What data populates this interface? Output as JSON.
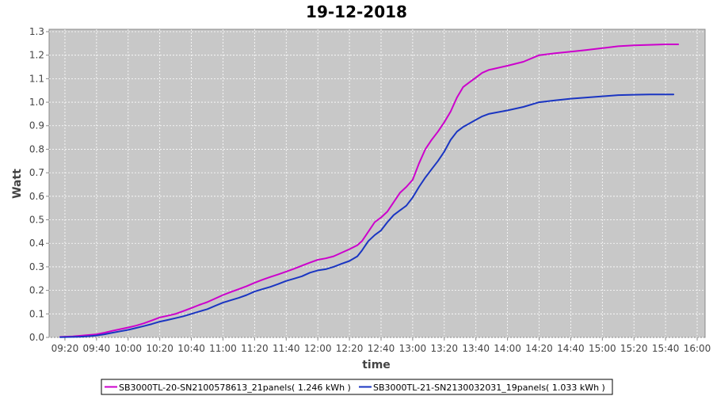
{
  "chart_data": {
    "type": "line",
    "title": "19-12-2018",
    "xlabel": "time",
    "ylabel": "Watt",
    "x_ticks": [
      "09:20",
      "09:40",
      "10:00",
      "10:20",
      "10:40",
      "11:00",
      "11:20",
      "11:40",
      "12:00",
      "12:20",
      "12:40",
      "13:00",
      "13:20",
      "13:40",
      "14:00",
      "14:20",
      "14:40",
      "15:00",
      "15:20",
      "15:40",
      "16:00"
    ],
    "y_ticks": [
      "0.0",
      "0.1",
      "0.2",
      "0.3",
      "0.4",
      "0.5",
      "0.6",
      "0.7",
      "0.8",
      "0.9",
      "1.0",
      "1.1",
      "1.2",
      "1.3"
    ],
    "xlim": [
      "09:10",
      "16:05"
    ],
    "ylim": [
      0,
      1.31
    ],
    "grid": true,
    "legend_position": "bottom",
    "series": [
      {
        "name": "SB3000TL-20-SN2100578613_21panels( 1.246 kWh )",
        "color": "#cc00cc",
        "points": [
          [
            "09:17",
            0.002
          ],
          [
            "09:25",
            0.004
          ],
          [
            "09:30",
            0.007
          ],
          [
            "09:35",
            0.01
          ],
          [
            "09:40",
            0.013
          ],
          [
            "09:45",
            0.02
          ],
          [
            "09:50",
            0.028
          ],
          [
            "09:55",
            0.035
          ],
          [
            "10:00",
            0.042
          ],
          [
            "10:05",
            0.05
          ],
          [
            "10:10",
            0.06
          ],
          [
            "10:15",
            0.072
          ],
          [
            "10:20",
            0.085
          ],
          [
            "10:25",
            0.092
          ],
          [
            "10:30",
            0.1
          ],
          [
            "10:35",
            0.112
          ],
          [
            "10:40",
            0.125
          ],
          [
            "10:45",
            0.138
          ],
          [
            "10:50",
            0.15
          ],
          [
            "10:55",
            0.165
          ],
          [
            "11:00",
            0.18
          ],
          [
            "11:05",
            0.193
          ],
          [
            "11:10",
            0.205
          ],
          [
            "11:15",
            0.218
          ],
          [
            "11:20",
            0.232
          ],
          [
            "11:25",
            0.245
          ],
          [
            "11:30",
            0.257
          ],
          [
            "11:35",
            0.268
          ],
          [
            "11:40",
            0.28
          ],
          [
            "11:45",
            0.292
          ],
          [
            "11:50",
            0.305
          ],
          [
            "11:55",
            0.318
          ],
          [
            "12:00",
            0.33
          ],
          [
            "12:05",
            0.336
          ],
          [
            "12:10",
            0.345
          ],
          [
            "12:15",
            0.36
          ],
          [
            "12:20",
            0.375
          ],
          [
            "12:25",
            0.392
          ],
          [
            "12:28",
            0.41
          ],
          [
            "12:32",
            0.45
          ],
          [
            "12:36",
            0.49
          ],
          [
            "12:40",
            0.51
          ],
          [
            "12:44",
            0.535
          ],
          [
            "12:48",
            0.575
          ],
          [
            "12:52",
            0.615
          ],
          [
            "12:56",
            0.64
          ],
          [
            "13:00",
            0.67
          ],
          [
            "13:04",
            0.74
          ],
          [
            "13:08",
            0.8
          ],
          [
            "13:12",
            0.84
          ],
          [
            "13:16",
            0.875
          ],
          [
            "13:20",
            0.915
          ],
          [
            "13:24",
            0.96
          ],
          [
            "13:28",
            1.02
          ],
          [
            "13:32",
            1.065
          ],
          [
            "13:36",
            1.085
          ],
          [
            "13:40",
            1.105
          ],
          [
            "13:44",
            1.125
          ],
          [
            "13:48",
            1.137
          ],
          [
            "13:52",
            1.143
          ],
          [
            "14:00",
            1.155
          ],
          [
            "14:10",
            1.172
          ],
          [
            "14:20",
            1.2
          ],
          [
            "14:30",
            1.208
          ],
          [
            "14:40",
            1.215
          ],
          [
            "14:50",
            1.222
          ],
          [
            "15:00",
            1.23
          ],
          [
            "15:10",
            1.238
          ],
          [
            "15:20",
            1.242
          ],
          [
            "15:30",
            1.244
          ],
          [
            "15:40",
            1.246
          ],
          [
            "15:48",
            1.246
          ]
        ]
      },
      {
        "name": "SB3000TL-21-SN2130032031_19panels( 1.033 kWh )",
        "color": "#1a35c2",
        "points": [
          [
            "09:17",
            0.001
          ],
          [
            "09:25",
            0.002
          ],
          [
            "09:30",
            0.003
          ],
          [
            "09:35",
            0.005
          ],
          [
            "09:40",
            0.008
          ],
          [
            "09:45",
            0.013
          ],
          [
            "09:50",
            0.02
          ],
          [
            "09:55",
            0.026
          ],
          [
            "10:00",
            0.032
          ],
          [
            "10:05",
            0.04
          ],
          [
            "10:10",
            0.048
          ],
          [
            "10:15",
            0.057
          ],
          [
            "10:20",
            0.067
          ],
          [
            "10:25",
            0.074
          ],
          [
            "10:30",
            0.082
          ],
          [
            "10:35",
            0.09
          ],
          [
            "10:40",
            0.1
          ],
          [
            "10:45",
            0.11
          ],
          [
            "10:50",
            0.12
          ],
          [
            "10:55",
            0.134
          ],
          [
            "11:00",
            0.148
          ],
          [
            "11:05",
            0.158
          ],
          [
            "11:10",
            0.168
          ],
          [
            "11:15",
            0.18
          ],
          [
            "11:20",
            0.195
          ],
          [
            "11:25",
            0.205
          ],
          [
            "11:30",
            0.215
          ],
          [
            "11:35",
            0.227
          ],
          [
            "11:40",
            0.24
          ],
          [
            "11:45",
            0.25
          ],
          [
            "11:50",
            0.26
          ],
          [
            "11:55",
            0.275
          ],
          [
            "12:00",
            0.285
          ],
          [
            "12:05",
            0.29
          ],
          [
            "12:10",
            0.3
          ],
          [
            "12:15",
            0.313
          ],
          [
            "12:20",
            0.325
          ],
          [
            "12:25",
            0.345
          ],
          [
            "12:28",
            0.37
          ],
          [
            "12:32",
            0.41
          ],
          [
            "12:36",
            0.435
          ],
          [
            "12:40",
            0.455
          ],
          [
            "12:44",
            0.49
          ],
          [
            "12:48",
            0.52
          ],
          [
            "12:52",
            0.54
          ],
          [
            "12:56",
            0.56
          ],
          [
            "13:00",
            0.595
          ],
          [
            "13:04",
            0.64
          ],
          [
            "13:08",
            0.68
          ],
          [
            "13:12",
            0.715
          ],
          [
            "13:16",
            0.75
          ],
          [
            "13:20",
            0.79
          ],
          [
            "13:24",
            0.84
          ],
          [
            "13:28",
            0.875
          ],
          [
            "13:32",
            0.895
          ],
          [
            "13:36",
            0.91
          ],
          [
            "13:40",
            0.925
          ],
          [
            "13:44",
            0.94
          ],
          [
            "13:48",
            0.95
          ],
          [
            "13:52",
            0.955
          ],
          [
            "14:00",
            0.965
          ],
          [
            "14:10",
            0.98
          ],
          [
            "14:20",
            1.0
          ],
          [
            "14:30",
            1.008
          ],
          [
            "14:40",
            1.015
          ],
          [
            "14:50",
            1.02
          ],
          [
            "15:00",
            1.025
          ],
          [
            "15:10",
            1.03
          ],
          [
            "15:20",
            1.032
          ],
          [
            "15:30",
            1.033
          ],
          [
            "15:40",
            1.033
          ],
          [
            "15:45",
            1.033
          ]
        ]
      }
    ]
  }
}
